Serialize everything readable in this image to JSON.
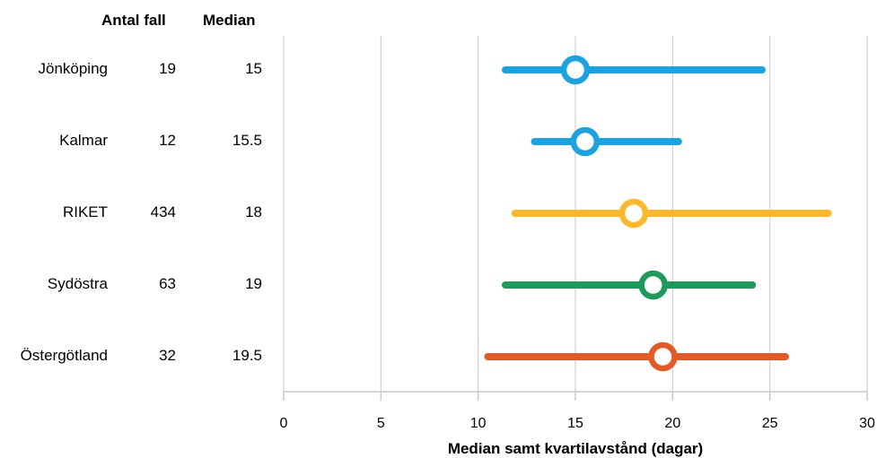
{
  "table": {
    "count_header": "Antal fall",
    "median_header": "Median"
  },
  "chart_data": {
    "type": "scatter",
    "xlabel": "Median samt kvartilavstånd (dagar)",
    "xlim": [
      0,
      30
    ],
    "xticks": [
      0,
      5,
      10,
      15,
      20,
      25,
      30
    ],
    "grid": true,
    "rows": [
      {
        "region": "Jönköping",
        "count": "19",
        "median_label": "15",
        "median": 15,
        "q1": 11.4,
        "q3": 24.6,
        "color": "#1aa3e0"
      },
      {
        "region": "Kalmar",
        "count": "12",
        "median_label": "15.5",
        "median": 15.5,
        "q1": 12.9,
        "q3": 20.3,
        "color": "#1aa3e0"
      },
      {
        "region": "RIKET",
        "count": "434",
        "median_label": "18",
        "median": 18,
        "q1": 11.9,
        "q3": 28.0,
        "color": "#fdb72a"
      },
      {
        "region": "Sydöstra",
        "count": "63",
        "median_label": "19",
        "median": 19,
        "q1": 11.4,
        "q3": 24.1,
        "color": "#1e9a5a"
      },
      {
        "region": "Östergötland",
        "count": "32",
        "median_label": "19.5",
        "median": 19.5,
        "q1": 10.5,
        "q3": 25.8,
        "color": "#e35a26"
      }
    ]
  }
}
